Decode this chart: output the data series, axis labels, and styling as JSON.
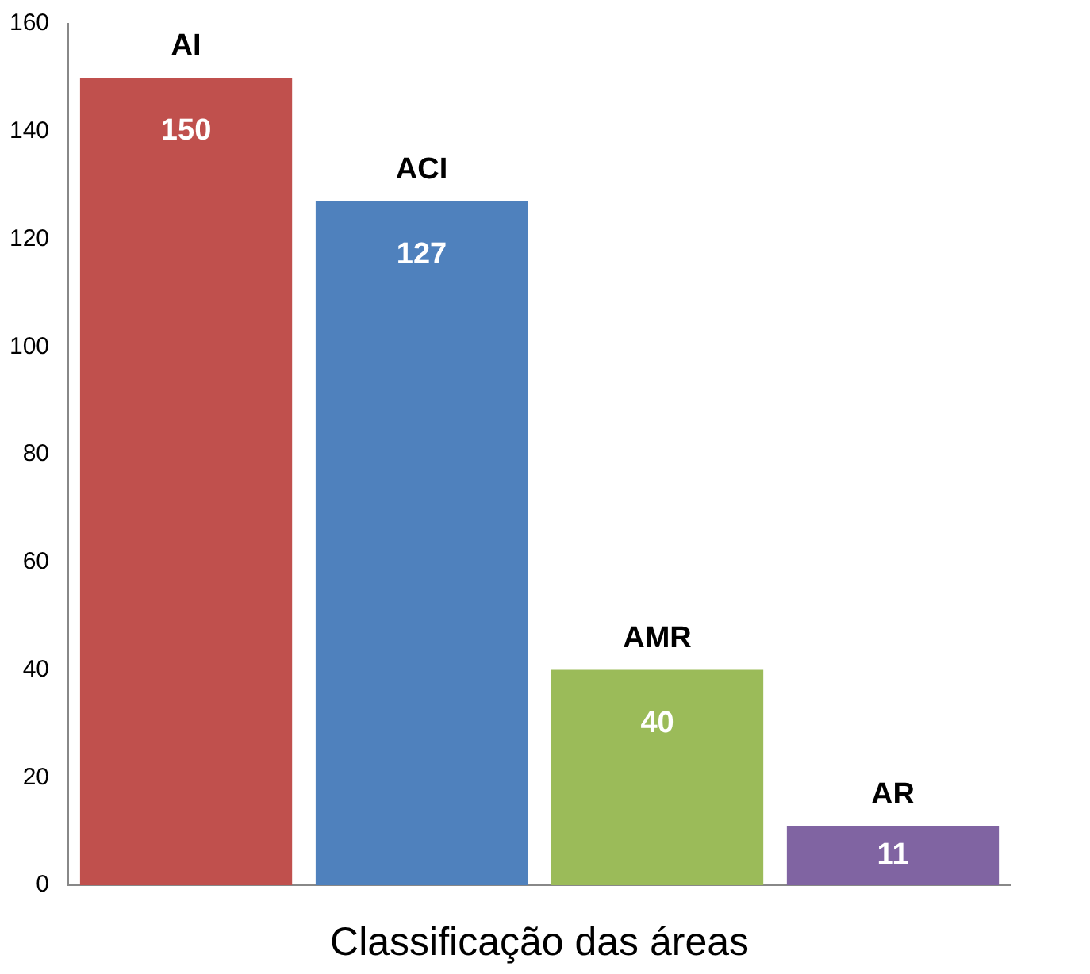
{
  "chart_data": {
    "type": "bar",
    "xlabel": "Classificação das áreas",
    "categories": [
      "AI",
      "ACI",
      "AMR",
      "AR"
    ],
    "values": [
      150,
      127,
      40,
      11
    ],
    "colors": [
      "#c0504d",
      "#4f81bd",
      "#9bbb59",
      "#8064a2"
    ],
    "ylim": [
      0,
      160
    ],
    "yticks": [
      0,
      20,
      40,
      60,
      80,
      100,
      120,
      140,
      160
    ],
    "grid": false,
    "legend": false,
    "data_labels": true
  }
}
